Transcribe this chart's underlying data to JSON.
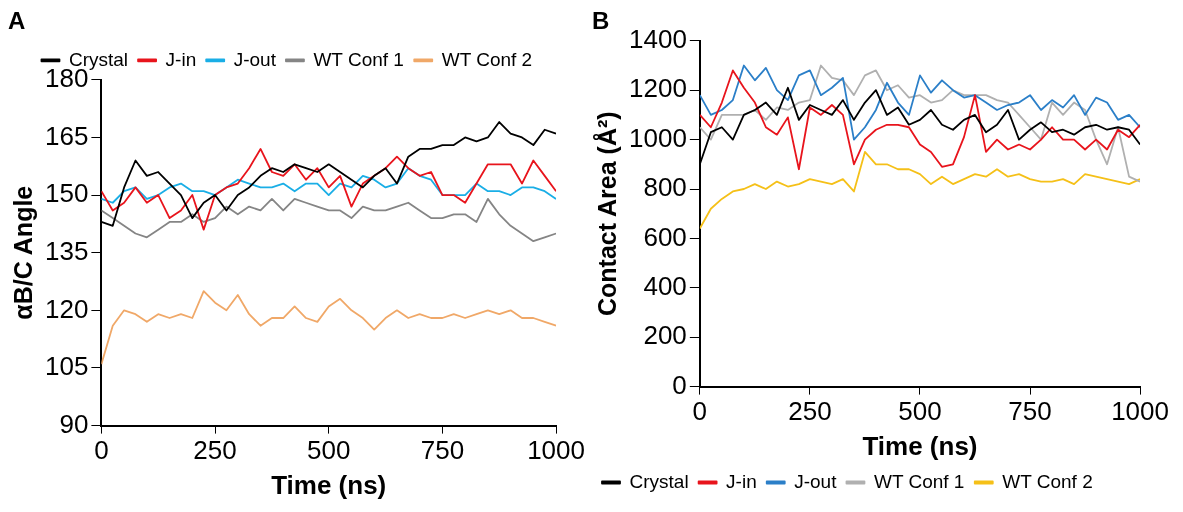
{
  "chart_data": [
    {
      "type": "line",
      "title": "A",
      "xlabel": "Time (ns)",
      "ylabel": "αB/C Angle",
      "legend": "top",
      "grid": false,
      "marker": "none",
      "line_style": "solid",
      "x": [
        0,
        25,
        50,
        75,
        100,
        125,
        150,
        175,
        200,
        225,
        250,
        275,
        300,
        325,
        350,
        375,
        400,
        425,
        450,
        475,
        500,
        525,
        550,
        575,
        600,
        625,
        650,
        675,
        700,
        725,
        750,
        775,
        800,
        825,
        850,
        875,
        900,
        925,
        950,
        975,
        1000
      ],
      "xlim": [
        0,
        1000
      ],
      "xticks": [
        0,
        250,
        500,
        750,
        1000
      ],
      "ylim": [
        90,
        180
      ],
      "yticks": [
        90,
        105,
        120,
        135,
        150,
        165,
        180
      ],
      "series": [
        {
          "name": "Crystal",
          "color": "#000000",
          "values": [
            143,
            142,
            152,
            159,
            155,
            156,
            153,
            150,
            144,
            148,
            150,
            146,
            150,
            152,
            155,
            157,
            156,
            158,
            157,
            156,
            158,
            156,
            154,
            152,
            155,
            157,
            153,
            160,
            162,
            162,
            163,
            163,
            165,
            164,
            165,
            169,
            166,
            165,
            163,
            167,
            166
          ]
        },
        {
          "name": "J-in",
          "color": "#e8141c",
          "values": [
            151,
            146,
            148,
            152,
            148,
            150,
            144,
            146,
            150,
            141,
            150,
            152,
            153,
            157,
            162,
            156,
            155,
            158,
            154,
            157,
            152,
            155,
            147,
            153,
            155,
            157,
            160,
            157,
            155,
            156,
            150,
            150,
            148,
            153,
            158,
            158,
            158,
            153,
            159,
            155,
            151
          ]
        },
        {
          "name": "J-out",
          "color": "#1aaee6",
          "values": [
            149,
            148,
            151,
            152,
            149,
            150,
            152,
            153,
            151,
            151,
            150,
            152,
            154,
            153,
            152,
            152,
            153,
            151,
            153,
            153,
            150,
            153,
            152,
            155,
            154,
            152,
            153,
            157,
            155,
            154,
            150,
            150,
            150,
            153,
            151,
            151,
            150,
            152,
            152,
            151,
            149
          ]
        },
        {
          "name": "WT Conf 1",
          "color": "#858585",
          "values": [
            146,
            144,
            142,
            140,
            139,
            141,
            143,
            143,
            145,
            143,
            144,
            147,
            145,
            147,
            146,
            149,
            146,
            149,
            148,
            147,
            146,
            146,
            144,
            147,
            146,
            146,
            147,
            148,
            146,
            144,
            144,
            145,
            145,
            143,
            149,
            145,
            142,
            140,
            138,
            139,
            140
          ]
        },
        {
          "name": "WT Conf 2",
          "color": "#f0a868",
          "values": [
            106,
            116,
            120,
            119,
            117,
            119,
            118,
            119,
            118,
            125,
            122,
            120,
            124,
            119,
            116,
            118,
            118,
            121,
            118,
            117,
            121,
            123,
            120,
            118,
            115,
            118,
            120,
            118,
            119,
            118,
            118,
            119,
            118,
            119,
            120,
            119,
            120,
            118,
            118,
            117,
            116
          ]
        }
      ]
    },
    {
      "type": "line",
      "title": "B",
      "xlabel": "Time (ns)",
      "ylabel": "Contact Area (Å²)",
      "legend": "bottom left",
      "grid": false,
      "marker": "none",
      "line_style": "solid",
      "x": [
        0,
        25,
        50,
        75,
        100,
        125,
        150,
        175,
        200,
        225,
        250,
        275,
        300,
        325,
        350,
        375,
        400,
        425,
        450,
        475,
        500,
        525,
        550,
        575,
        600,
        625,
        650,
        675,
        700,
        725,
        750,
        775,
        800,
        825,
        850,
        875,
        900,
        925,
        950,
        975,
        1000
      ],
      "xlim": [
        0,
        1000
      ],
      "xticks": [
        0,
        250,
        500,
        750,
        1000
      ],
      "ylim": [
        0,
        1400
      ],
      "yticks": [
        0,
        200,
        400,
        600,
        800,
        1000,
        1200,
        1400
      ],
      "series": [
        {
          "name": "Crystal",
          "color": "#000000",
          "values": [
            900,
            1030,
            1050,
            1000,
            1100,
            1120,
            1150,
            1100,
            1210,
            1080,
            1140,
            1120,
            1100,
            1160,
            1080,
            1150,
            1200,
            1100,
            1130,
            1060,
            1080,
            1120,
            1060,
            1040,
            1080,
            1100,
            1030,
            1060,
            1120,
            1000,
            1040,
            1070,
            1030,
            1040,
            1020,
            1050,
            1060,
            1040,
            1050,
            1040,
            980
          ]
        },
        {
          "name": "J-in",
          "color": "#e8141c",
          "values": [
            1100,
            1050,
            1150,
            1280,
            1210,
            1150,
            1050,
            1020,
            1090,
            880,
            1130,
            1100,
            1140,
            1100,
            900,
            1000,
            1040,
            1060,
            1060,
            1050,
            980,
            950,
            890,
            900,
            1010,
            1180,
            950,
            1000,
            960,
            980,
            960,
            1000,
            1050,
            1000,
            1000,
            960,
            1000,
            960,
            1040,
            1010,
            1060
          ]
        },
        {
          "name": "J-out",
          "color": "#2b7fc8",
          "values": [
            1180,
            1100,
            1120,
            1160,
            1300,
            1240,
            1290,
            1200,
            1160,
            1260,
            1280,
            1180,
            1210,
            1250,
            1000,
            1050,
            1120,
            1230,
            1150,
            1100,
            1260,
            1190,
            1240,
            1200,
            1170,
            1180,
            1150,
            1120,
            1140,
            1150,
            1180,
            1120,
            1160,
            1130,
            1180,
            1100,
            1170,
            1150,
            1080,
            1100,
            1050
          ]
        },
        {
          "name": "WT Conf 1",
          "color": "#b0b0b0",
          "values": [
            1050,
            1000,
            1100,
            1100,
            1100,
            1120,
            1080,
            1130,
            1120,
            1150,
            1160,
            1300,
            1250,
            1240,
            1180,
            1260,
            1280,
            1200,
            1220,
            1170,
            1180,
            1150,
            1160,
            1200,
            1180,
            1180,
            1180,
            1160,
            1150,
            1100,
            1050,
            1000,
            1150,
            1100,
            1150,
            1120,
            1000,
            900,
            1050,
            850,
            830
          ]
        },
        {
          "name": "WT Conf 2",
          "color": "#f5c018",
          "values": [
            640,
            720,
            760,
            790,
            800,
            820,
            800,
            830,
            810,
            820,
            840,
            830,
            820,
            840,
            790,
            950,
            900,
            900,
            880,
            880,
            860,
            820,
            850,
            820,
            840,
            860,
            850,
            880,
            850,
            860,
            840,
            830,
            830,
            840,
            820,
            860,
            850,
            840,
            830,
            820,
            840
          ]
        }
      ]
    }
  ]
}
